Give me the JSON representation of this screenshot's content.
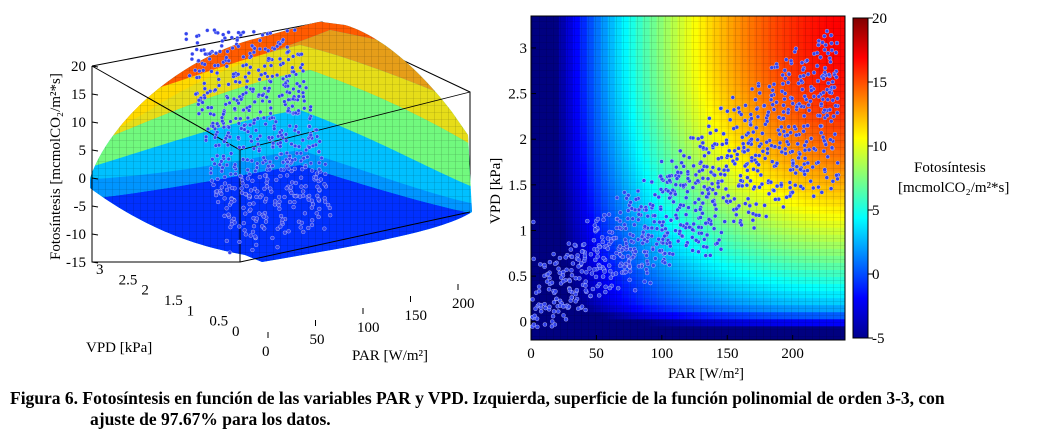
{
  "chart_data": [
    {
      "type": "surface3d",
      "zlabel": "Fotosíntesis [mcmolCO₂/m²*s]",
      "xlabel": "PAR [W/m²]",
      "ylabel": "VPD [kPa]",
      "xlim": [
        0,
        220
      ],
      "ylim": [
        0,
        3.3
      ],
      "zlim": [
        -15,
        20
      ],
      "x_ticks": [
        "0",
        "50",
        "100",
        "150",
        "200"
      ],
      "y_ticks": [
        "3",
        "2.5",
        "2",
        "1.5",
        "1",
        "0.5",
        "0"
      ],
      "z_ticks": [
        "20",
        "15",
        "10",
        "5",
        "0",
        "-5",
        "-10",
        "-15"
      ],
      "colormap": "jet",
      "scatter_color": "#3344ee"
    },
    {
      "type": "heatmap",
      "xlabel": "PAR [W/m²]",
      "ylabel": "VPD [kPa]",
      "xlim": [
        0,
        240
      ],
      "ylim": [
        -0.2,
        3.35
      ],
      "x_ticks": [
        "0",
        "50",
        "100",
        "150",
        "200"
      ],
      "y_ticks": [
        "0",
        "0.5",
        "1",
        "1.5",
        "2",
        "2.5",
        "3"
      ],
      "colorbar": {
        "label_line1": "Fotosíntesis",
        "label_line2": "[mcmolCO₂/m²*s]",
        "range": [
          -5,
          20
        ],
        "ticks": [
          "20",
          "15",
          "10",
          "5",
          "0",
          "-5"
        ]
      },
      "colormap": "jet",
      "scatter_color": "#3344ee"
    }
  ],
  "caption": {
    "line1": "Figura 6. Fotosíntesis en función de las variables PAR y VPD. Izquierda, superficie de la función polinomial de orden 3-3, con",
    "line2": "ajuste de 97.67% para los datos."
  }
}
